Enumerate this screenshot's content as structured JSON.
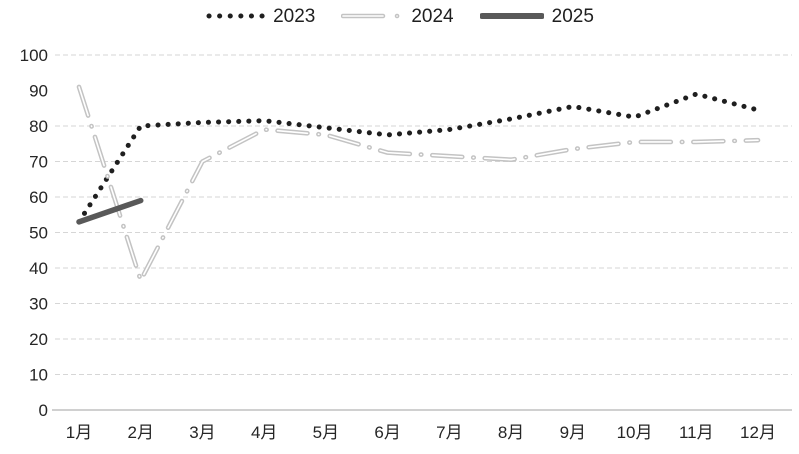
{
  "chart_data": {
    "type": "line",
    "title": "",
    "xlabel": "",
    "ylabel": "",
    "ylim": [
      0,
      100
    ],
    "grid": true,
    "legend_position": "top",
    "categories": [
      "1月",
      "2月",
      "3月",
      "4月",
      "5月",
      "6月",
      "7月",
      "8月",
      "9月",
      "10月",
      "11月",
      "12月"
    ],
    "y_ticks": [
      0,
      10,
      20,
      30,
      40,
      50,
      60,
      70,
      80,
      90,
      100
    ],
    "gridlines_dashed_at": [
      100,
      80,
      70,
      60,
      50,
      40,
      30,
      20,
      10
    ],
    "baseline_at": 0,
    "series": [
      {
        "name": "2023",
        "style": "dotted",
        "color": "#1f1f1f",
        "values": [
          53,
          80,
          81,
          81.5,
          79.5,
          77.5,
          79,
          82,
          85.5,
          82.5,
          89,
          84.5
        ]
      },
      {
        "name": "2024",
        "style": "dash-dot",
        "color": "#c3c3c3",
        "core_color": "#ffffff",
        "values": [
          91,
          36.5,
          70,
          79,
          77.5,
          72.5,
          71.5,
          70.5,
          73.5,
          75.5,
          75.5,
          76
        ]
      },
      {
        "name": "2025",
        "style": "solid",
        "color": "#595959",
        "values": [
          53,
          59,
          null,
          null,
          null,
          null,
          null,
          null,
          null,
          null,
          null,
          null
        ]
      }
    ],
    "colors": {
      "gridline": "#d6d6d6",
      "axis_line": "#b3b3b3",
      "tick_text": "#262626"
    }
  }
}
